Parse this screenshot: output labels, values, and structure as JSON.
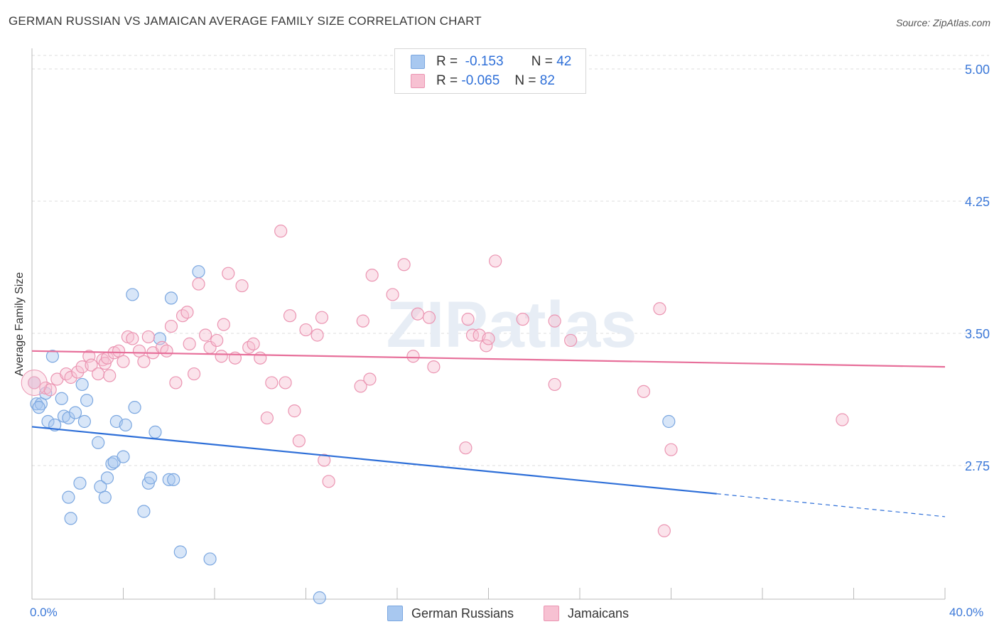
{
  "title": "GERMAN RUSSIAN VS JAMAICAN AVERAGE FAMILY SIZE CORRELATION CHART",
  "source": "Source: ZipAtlas.com",
  "watermark": "ZIPatlas",
  "legend": {
    "rows": [
      {
        "r_label": "R =",
        "r_value": "-0.153",
        "n_label": "N =",
        "n_value": "42",
        "color": "#a8c8f0",
        "border": "#7ba7e0"
      },
      {
        "r_label": "R =",
        "r_value": "-0.065",
        "n_label": "N =",
        "n_value": "82",
        "color": "#f7c1d2",
        "border": "#eb95b2"
      }
    ]
  },
  "bottom_legend": [
    {
      "label": "German Russians",
      "color": "#a8c8f0",
      "border": "#7ba7e0"
    },
    {
      "label": "Jamaicans",
      "color": "#f7c1d2",
      "border": "#eb95b2"
    }
  ],
  "chart_data": {
    "type": "scatter",
    "title": "GERMAN RUSSIAN VS JAMAICAN AVERAGE FAMILY SIZE CORRELATION CHART",
    "xlabel": "",
    "ylabel": "Average Family Size",
    "xlim": [
      0,
      40
    ],
    "ylim": [
      2.0,
      5.1
    ],
    "x_tick_labels": [
      "0.0%",
      "40.0%"
    ],
    "y_ticks": [
      2.75,
      3.5,
      4.25,
      5.0
    ],
    "y_tick_labels": [
      "2.75",
      "3.50",
      "4.25",
      "5.00"
    ],
    "series": [
      {
        "name": "German Russians",
        "color": "#7ba7e0",
        "trend": {
          "x0": 0,
          "y0": 2.97,
          "x1": 30,
          "y1": 2.59,
          "x_dash_end": 40,
          "y_dash_end": 2.46,
          "color": "#2e6fd8"
        },
        "points": [
          [
            0.1,
            3.22
          ],
          [
            0.2,
            3.1
          ],
          [
            0.4,
            3.1
          ],
          [
            0.6,
            3.16
          ],
          [
            0.7,
            3.0
          ],
          [
            0.9,
            3.37
          ],
          [
            1.0,
            2.98
          ],
          [
            1.3,
            3.13
          ],
          [
            1.4,
            3.03
          ],
          [
            1.6,
            2.57
          ],
          [
            1.6,
            3.02
          ],
          [
            1.7,
            2.45
          ],
          [
            1.9,
            3.05
          ],
          [
            2.1,
            2.65
          ],
          [
            2.2,
            3.21
          ],
          [
            2.3,
            3.0
          ],
          [
            2.4,
            3.12
          ],
          [
            2.9,
            2.88
          ],
          [
            3.0,
            2.63
          ],
          [
            3.2,
            2.57
          ],
          [
            3.3,
            2.68
          ],
          [
            3.5,
            2.76
          ],
          [
            3.6,
            2.77
          ],
          [
            3.7,
            3.0
          ],
          [
            4.0,
            2.8
          ],
          [
            4.1,
            2.98
          ],
          [
            4.4,
            3.72
          ],
          [
            4.5,
            3.08
          ],
          [
            4.9,
            2.49
          ],
          [
            5.1,
            2.65
          ],
          [
            5.2,
            2.68
          ],
          [
            5.4,
            2.94
          ],
          [
            5.6,
            3.47
          ],
          [
            6.0,
            2.67
          ],
          [
            6.1,
            3.7
          ],
          [
            6.2,
            2.67
          ],
          [
            6.5,
            2.26
          ],
          [
            7.3,
            3.85
          ],
          [
            7.8,
            2.22
          ],
          [
            12.6,
            2.0
          ],
          [
            27.9,
            3.0
          ],
          [
            0.3,
            3.08
          ]
        ]
      },
      {
        "name": "Jamaicans",
        "color": "#eb95b2",
        "trend": {
          "x0": 0,
          "y0": 3.4,
          "x1": 40,
          "y1": 3.31,
          "color": "#e76f9a"
        },
        "points": [
          [
            0.1,
            3.22
          ],
          [
            0.6,
            3.19
          ],
          [
            0.8,
            3.18
          ],
          [
            1.1,
            3.24
          ],
          [
            1.5,
            3.27
          ],
          [
            1.7,
            3.25
          ],
          [
            2.0,
            3.28
          ],
          [
            2.2,
            3.31
          ],
          [
            2.5,
            3.37
          ],
          [
            2.6,
            3.32
          ],
          [
            2.9,
            3.27
          ],
          [
            3.1,
            3.35
          ],
          [
            3.2,
            3.33
          ],
          [
            3.3,
            3.36
          ],
          [
            3.4,
            3.26
          ],
          [
            3.6,
            3.39
          ],
          [
            3.8,
            3.4
          ],
          [
            4.0,
            3.34
          ],
          [
            4.2,
            3.48
          ],
          [
            4.4,
            3.47
          ],
          [
            4.7,
            3.4
          ],
          [
            4.9,
            3.34
          ],
          [
            5.1,
            3.48
          ],
          [
            5.3,
            3.39
          ],
          [
            5.7,
            3.42
          ],
          [
            5.9,
            3.4
          ],
          [
            6.1,
            3.54
          ],
          [
            6.3,
            3.22
          ],
          [
            6.6,
            3.6
          ],
          [
            6.8,
            3.62
          ],
          [
            6.9,
            3.44
          ],
          [
            7.1,
            3.27
          ],
          [
            7.3,
            3.78
          ],
          [
            7.6,
            3.49
          ],
          [
            7.8,
            3.42
          ],
          [
            8.1,
            3.46
          ],
          [
            8.3,
            3.37
          ],
          [
            8.4,
            3.55
          ],
          [
            8.6,
            3.84
          ],
          [
            8.9,
            3.36
          ],
          [
            9.2,
            3.77
          ],
          [
            9.5,
            3.42
          ],
          [
            9.7,
            3.44
          ],
          [
            10.0,
            3.36
          ],
          [
            10.3,
            3.02
          ],
          [
            10.5,
            3.22
          ],
          [
            10.9,
            4.08
          ],
          [
            11.1,
            3.22
          ],
          [
            11.3,
            3.6
          ],
          [
            11.5,
            3.06
          ],
          [
            11.7,
            2.89
          ],
          [
            12.0,
            3.52
          ],
          [
            12.5,
            3.49
          ],
          [
            12.7,
            3.59
          ],
          [
            12.8,
            2.78
          ],
          [
            13.0,
            2.66
          ],
          [
            14.4,
            3.2
          ],
          [
            14.5,
            3.57
          ],
          [
            14.8,
            3.24
          ],
          [
            14.9,
            3.83
          ],
          [
            15.8,
            3.72
          ],
          [
            16.3,
            3.89
          ],
          [
            16.7,
            3.37
          ],
          [
            16.9,
            3.61
          ],
          [
            17.4,
            3.59
          ],
          [
            17.6,
            3.31
          ],
          [
            19.0,
            2.85
          ],
          [
            19.1,
            3.58
          ],
          [
            19.3,
            3.49
          ],
          [
            19.6,
            3.49
          ],
          [
            19.9,
            3.43
          ],
          [
            20.0,
            3.47
          ],
          [
            20.3,
            3.91
          ],
          [
            21.5,
            3.58
          ],
          [
            22.9,
            3.57
          ],
          [
            22.9,
            3.21
          ],
          [
            23.6,
            3.46
          ],
          [
            26.8,
            3.17
          ],
          [
            27.5,
            3.64
          ],
          [
            27.7,
            2.38
          ],
          [
            28.0,
            2.84
          ],
          [
            35.5,
            3.01
          ]
        ]
      }
    ]
  }
}
